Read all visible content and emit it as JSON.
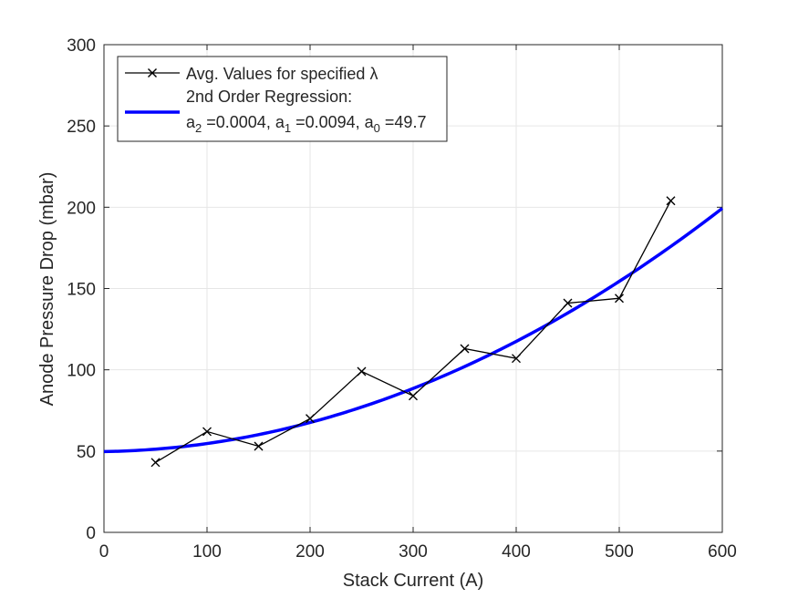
{
  "chart_data": {
    "type": "line",
    "xlabel": "Stack Current (A)",
    "ylabel": "Anode Pressure Drop (mbar)",
    "xlim": [
      0,
      600
    ],
    "ylim": [
      0,
      300
    ],
    "xticks": [
      0,
      100,
      200,
      300,
      400,
      500,
      600
    ],
    "yticks": [
      0,
      50,
      100,
      150,
      200,
      250,
      300
    ],
    "grid": true,
    "legend_position": "top-left",
    "series": [
      {
        "name": "Avg. Values for specified λ",
        "marker": "x",
        "color": "#000000",
        "x": [
          50,
          100,
          150,
          200,
          250,
          300,
          350,
          400,
          450,
          500,
          550
        ],
        "y": [
          43,
          62,
          53,
          70,
          99,
          84,
          113,
          107,
          141,
          144,
          204
        ]
      },
      {
        "name_line1": "2nd Order Regression:",
        "name_line2_parts": [
          {
            "text": "a",
            "sub": "2",
            "value": " =0.0004, "
          },
          {
            "text": "a",
            "sub": "1",
            "value": " =0.0094, "
          },
          {
            "text": "a",
            "sub": "0",
            "value": " =49.7"
          }
        ],
        "color": "#0000ff",
        "coefficients": {
          "a2": 0.0004,
          "a1": 0.0094,
          "a0": 49.7
        },
        "x_range": [
          0,
          600
        ]
      }
    ]
  }
}
